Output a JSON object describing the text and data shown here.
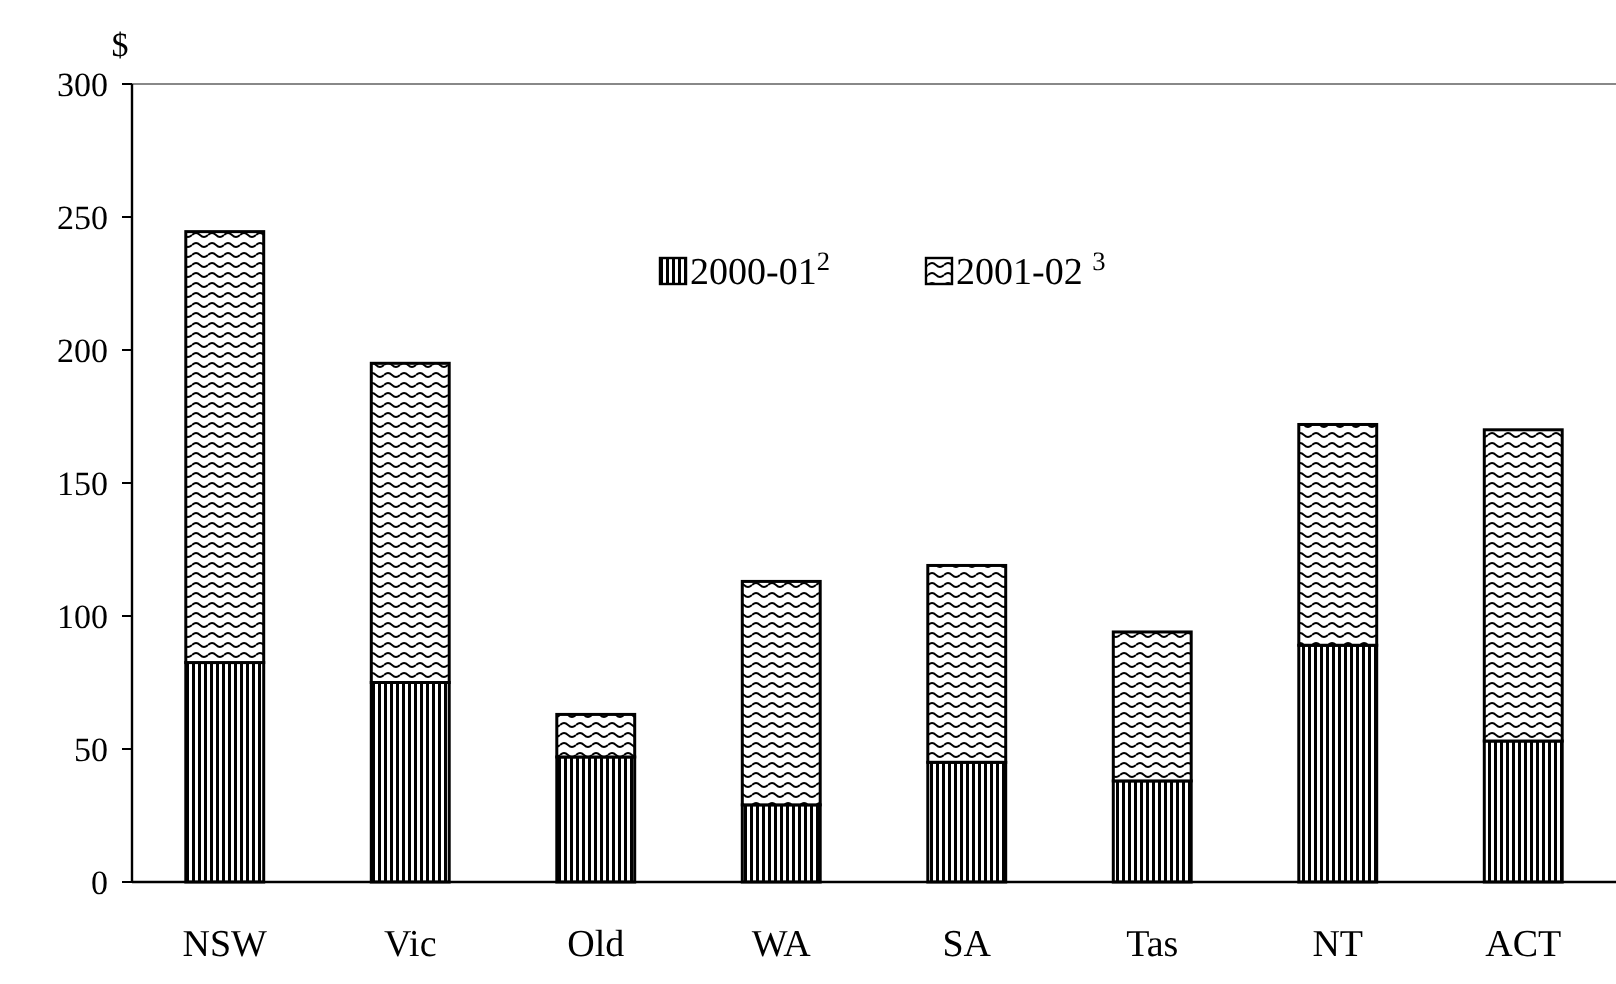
{
  "chart_data": {
    "type": "bar",
    "stacked": true,
    "ylabel": "$",
    "categories": [
      "NSW",
      "Vic",
      "Old",
      "WA",
      "SA",
      "Tas",
      "NT",
      "ACT"
    ],
    "series": [
      {
        "name": "2000-01$^{2}$",
        "color": "#000000",
        "values": [
          82.5,
          75,
          47,
          29,
          45,
          38,
          89,
          53
        ]
      },
      {
        "name": "2001-02 $^{3}$",
        "color": "#000000",
        "values": [
          162,
          120,
          16,
          84,
          74,
          56,
          83,
          117
        ]
      }
    ],
    "ylim": [
      0,
      300
    ],
    "yticks": [
      0,
      50,
      100,
      150,
      200,
      250,
      300
    ],
    "grid": false,
    "legend": "top"
  }
}
